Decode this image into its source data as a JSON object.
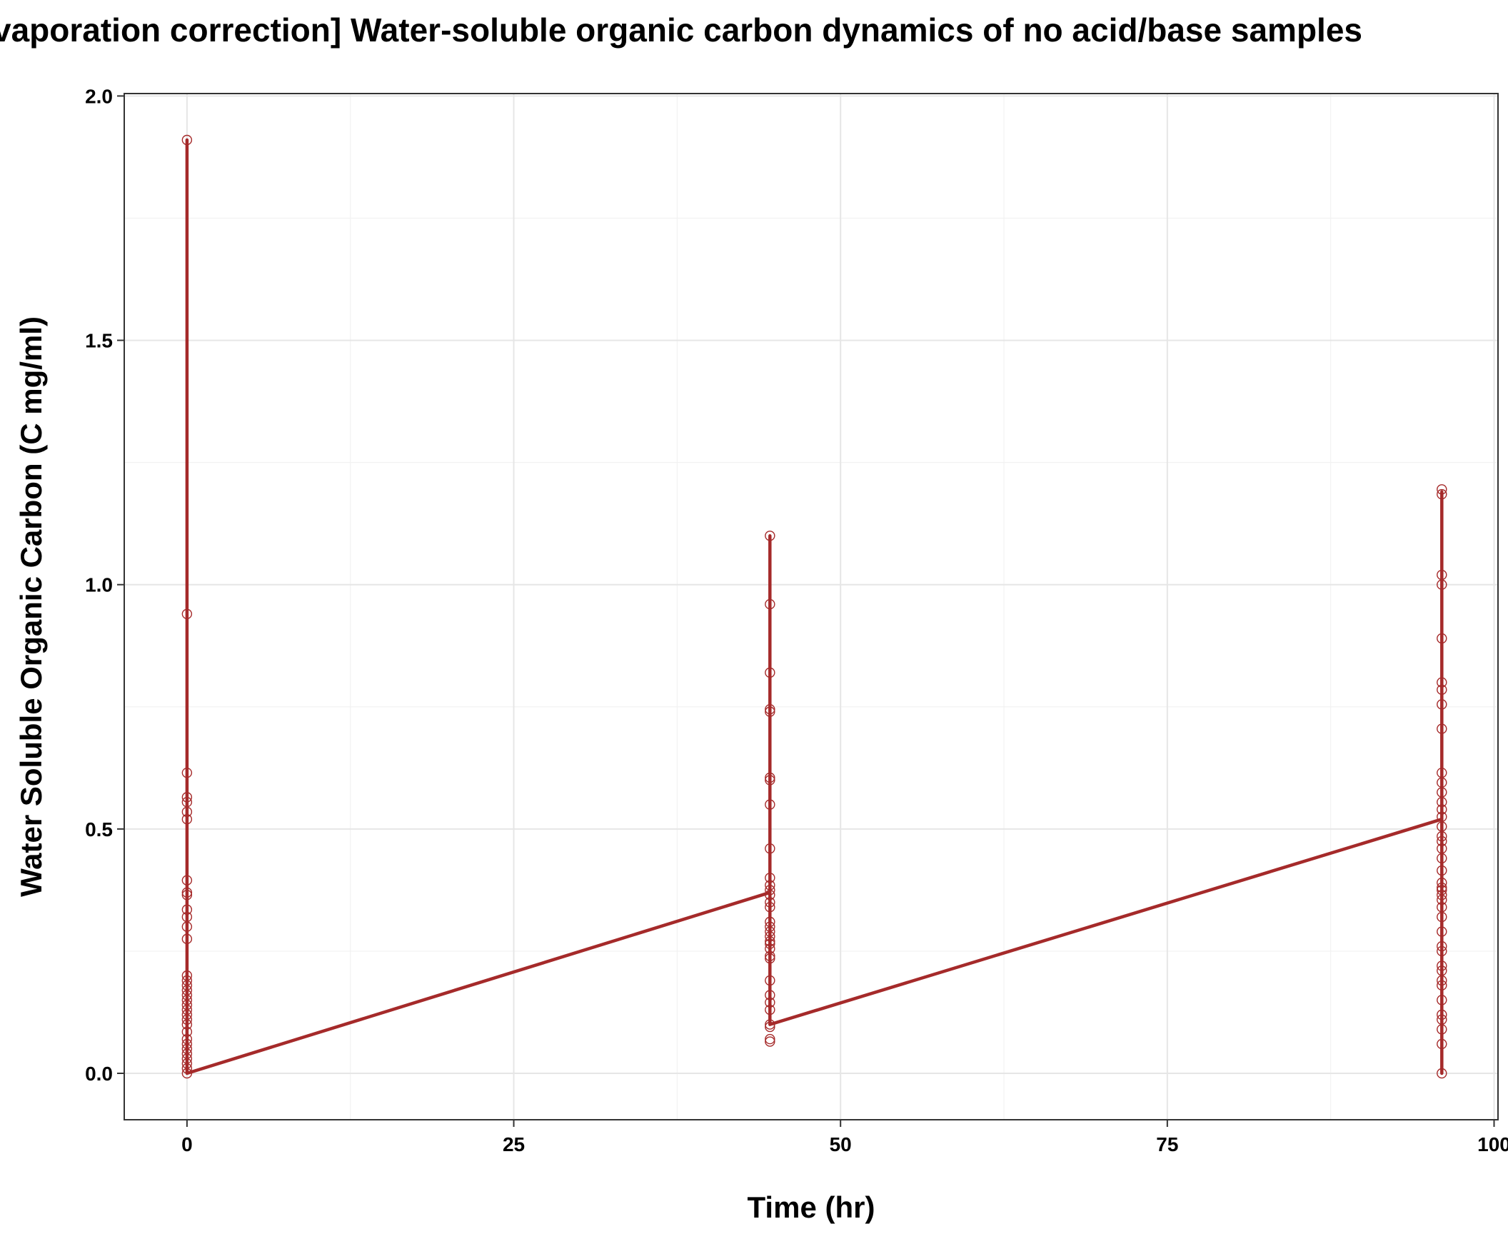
{
  "chart_data": {
    "type": "line",
    "title": "vaporation correction] Water-soluble organic carbon dynamics of no acid/base samples",
    "xlabel": "Time (hr)",
    "ylabel": "Water Soluble Organic Carbon (C mg/ml)",
    "xlim": [
      -4.8,
      100.3
    ],
    "ylim": [
      -0.095,
      2.005
    ],
    "x_ticks": [
      0,
      25,
      50,
      75,
      100
    ],
    "x_tick_labels": [
      "0",
      "25",
      "50",
      "75",
      "100"
    ],
    "y_ticks": [
      0.0,
      0.5,
      1.0,
      1.5,
      2.0
    ],
    "y_tick_labels": [
      "0.0",
      "0.5",
      "1.0",
      "1.5",
      "2.0"
    ],
    "grid": true,
    "legend": "none",
    "color": "#A52A2A",
    "series": [
      {
        "x": [
          0,
          0,
          0,
          44.6,
          44.6,
          44.6,
          96,
          96,
          96
        ],
        "values": [
          1.91,
          0.0,
          0.0,
          0.37,
          1.1,
          0.1,
          0.52,
          1.19,
          0.0
        ]
      }
    ],
    "points": [
      {
        "x": 0,
        "y": [
          1.91,
          0.94,
          0.615,
          0.565,
          0.555,
          0.535,
          0.52,
          0.395,
          0.37,
          0.365,
          0.335,
          0.32,
          0.3,
          0.275,
          0.2,
          0.19,
          0.18,
          0.17,
          0.16,
          0.15,
          0.14,
          0.13,
          0.12,
          0.11,
          0.1,
          0.085,
          0.07,
          0.06,
          0.05,
          0.04,
          0.03,
          0.02,
          0.01,
          0.0
        ]
      },
      {
        "x": 44.6,
        "y": [
          1.1,
          0.96,
          0.82,
          0.745,
          0.74,
          0.605,
          0.6,
          0.55,
          0.46,
          0.4,
          0.385,
          0.375,
          0.365,
          0.35,
          0.34,
          0.31,
          0.3,
          0.29,
          0.28,
          0.27,
          0.265,
          0.255,
          0.24,
          0.235,
          0.19,
          0.16,
          0.145,
          0.13,
          0.1,
          0.095,
          0.07,
          0.065
        ]
      },
      {
        "x": 96,
        "y": [
          1.195,
          1.185,
          1.02,
          1.0,
          0.89,
          0.8,
          0.785,
          0.755,
          0.705,
          0.615,
          0.595,
          0.575,
          0.555,
          0.54,
          0.525,
          0.505,
          0.485,
          0.475,
          0.46,
          0.44,
          0.415,
          0.39,
          0.38,
          0.375,
          0.365,
          0.355,
          0.34,
          0.32,
          0.29,
          0.26,
          0.25,
          0.22,
          0.21,
          0.19,
          0.18,
          0.15,
          0.12,
          0.11,
          0.09,
          0.06,
          0.0
        ]
      }
    ]
  }
}
